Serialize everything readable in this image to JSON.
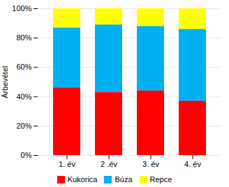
{
  "chart_data": {
    "type": "bar",
    "stacked": true,
    "categories": [
      "1. év",
      "2 .év",
      "3. év",
      "4. év"
    ],
    "series": [
      {
        "name": "Kukorica",
        "color": "#FF0000",
        "values": [
          46,
          43,
          44,
          37
        ]
      },
      {
        "name": "Búza",
        "color": "#00B0F0",
        "values": [
          41,
          46,
          44,
          49
        ]
      },
      {
        "name": "Repce",
        "color": "#FFFF00",
        "values": [
          13,
          11,
          12,
          14
        ]
      }
    ],
    "ylabel": "Árbevétel",
    "ylim": [
      0,
      100
    ],
    "yticks": [
      {
        "value": 0,
        "label": "0%"
      },
      {
        "value": 20,
        "label": "20%"
      },
      {
        "value": 40,
        "label": "40%"
      },
      {
        "value": 60,
        "label": "60%"
      },
      {
        "value": 80,
        "label": "80%"
      },
      {
        "value": 100,
        "label": "100%"
      }
    ],
    "grid": true,
    "legend": "bottom"
  }
}
